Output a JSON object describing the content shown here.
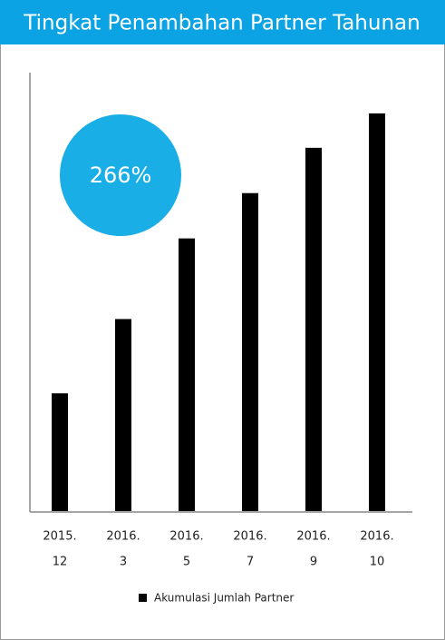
{
  "chart_data": {
    "type": "bar",
    "title": "Tingkat Penambahan Partner Tahunan",
    "categories": [
      [
        "2015.",
        "12"
      ],
      [
        "2016.",
        "3"
      ],
      [
        "2016.",
        "5"
      ],
      [
        "2016.",
        "7"
      ],
      [
        "2016.",
        "9"
      ],
      [
        "2016.",
        "10"
      ]
    ],
    "series": [
      {
        "name": "Akumulasi Jumlah Partner",
        "color": "#000000",
        "values": [
          130,
          212,
          301,
          351,
          401,
          439
        ]
      }
    ],
    "ylim": [
      0,
      483
    ],
    "annotation": "266%",
    "annotation_color": "#19aee6",
    "title_color": "#0ba3e3"
  }
}
